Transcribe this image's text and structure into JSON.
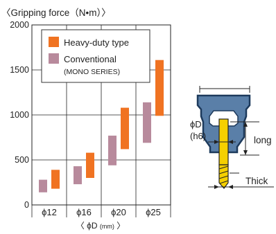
{
  "chart_data": {
    "type": "floating-bar",
    "title": "〈Gripping force（N•m）〉",
    "xlabel_prefix": "〈 ϕD ",
    "xlabel_unit": "(mm)",
    "xlabel_suffix": " 〉",
    "ylim": [
      0,
      2000
    ],
    "yticks": [
      0,
      500,
      1000,
      1500,
      2000
    ],
    "categories": [
      "ϕ12",
      "ϕ16",
      "ϕ20",
      "ϕ25"
    ],
    "grid": true,
    "legend_position": "top-left",
    "series": [
      {
        "name": "Conventional",
        "name_sub": "(MONO SERIES)",
        "color": "#b88a9c",
        "ranges": [
          [
            140,
            280
          ],
          [
            230,
            430
          ],
          [
            440,
            770
          ],
          [
            690,
            1140
          ]
        ]
      },
      {
        "name": "Heavy-duty type",
        "color": "#f07322",
        "ranges": [
          [
            180,
            390
          ],
          [
            300,
            580
          ],
          [
            620,
            1080
          ],
          [
            990,
            1610
          ]
        ]
      }
    ]
  },
  "diagram": {
    "label_diameter": "ϕD",
    "label_tolerance": "(h6)",
    "label_long": "long",
    "label_thick": "Thick",
    "colors": {
      "holder": "#5a7fa8",
      "holder_outline": "#1d3a5c",
      "tool": "#f5d000"
    }
  }
}
